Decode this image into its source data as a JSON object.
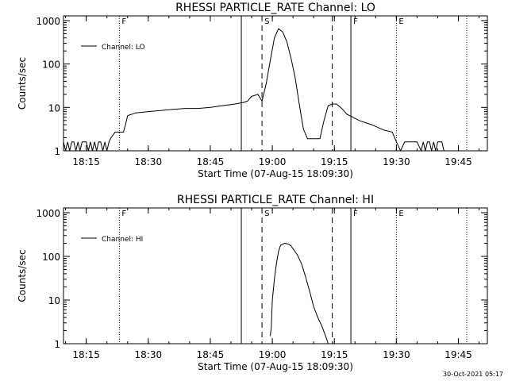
{
  "footer": {
    "timestamp": "30-Oct-2021 05:17"
  },
  "chart_data": [
    {
      "type": "line",
      "title": "RHESSI PARTICLE_RATE Channel: LO",
      "xlabel": "Start Time (07-Aug-15 18:09:30)",
      "ylabel": "Counts/sec",
      "y_scale": "log",
      "ylim": [
        1,
        1000
      ],
      "xlim": [
        "18:09:30",
        "19:52:00"
      ],
      "x_ticks": [
        "18:15",
        "18:30",
        "18:45",
        "19:00",
        "19:15",
        "19:30",
        "19:45"
      ],
      "y_ticks": [
        "1",
        "10",
        "100",
        "1000"
      ],
      "legend": {
        "position": "top-left",
        "entries": [
          "Channel: LO"
        ]
      },
      "series": [
        {
          "name": "Channel: LO",
          "x": [
            "18:09:30",
            "18:10:00",
            "18:10:30",
            "18:11:00",
            "18:11:30",
            "18:12:00",
            "18:12:30",
            "18:13:00",
            "18:13:30",
            "18:14:00",
            "18:14:30",
            "18:15:00",
            "18:15:30",
            "18:16:00",
            "18:16:30",
            "18:17:00",
            "18:17:30",
            "18:18:00",
            "18:18:30",
            "18:19:00",
            "18:19:30",
            "18:20:00",
            "18:20:30",
            "18:21:00",
            "18:22:00",
            "18:23:00",
            "18:24:00",
            "18:24:30",
            "18:25:00",
            "18:27:00",
            "18:30:00",
            "18:33:00",
            "18:36:00",
            "18:39:00",
            "18:42:00",
            "18:45:00",
            "18:48:00",
            "18:51:00",
            "18:53:00",
            "18:54:00",
            "18:55:00",
            "18:56:30",
            "18:57:30",
            "18:58:30",
            "18:59:30",
            "19:00:30",
            "19:01:30",
            "19:02:30",
            "19:03:30",
            "19:04:30",
            "19:05:30",
            "19:06:30",
            "19:07:30",
            "19:08:30",
            "19:09:30",
            "19:10:30",
            "19:11:30",
            "19:12:30",
            "19:13:30",
            "19:14:30",
            "19:15:30",
            "19:16:00",
            "19:16:30",
            "19:17:00",
            "19:18:00",
            "19:21:00",
            "19:24:00",
            "19:27:00",
            "19:29:00",
            "19:30:00",
            "19:31:00",
            "19:32:00",
            "19:33:00",
            "19:34:00",
            "19:35:00",
            "19:36:00",
            "19:36:30",
            "19:37:00",
            "19:37:30",
            "19:38:00",
            "19:38:30",
            "19:39:00",
            "19:39:30",
            "19:40:00",
            "19:40:30",
            "19:41:00",
            "19:41:30",
            "19:42:00"
          ],
          "values": [
            1.6,
            1,
            1.6,
            1,
            1.6,
            1.6,
            1,
            1.6,
            1,
            1.6,
            1.6,
            1.6,
            1,
            1.6,
            1,
            1.6,
            1,
            1.6,
            1.6,
            1,
            1.6,
            1,
            1.6,
            2,
            2.7,
            2.7,
            2.7,
            4,
            6.5,
            7.5,
            8,
            8.5,
            9,
            9.5,
            9.5,
            10,
            11,
            12,
            13,
            14,
            18,
            20,
            14,
            35,
            120,
            400,
            650,
            550,
            330,
            140,
            50,
            12,
            3.2,
            1.9,
            1.9,
            1.9,
            1.9,
            5,
            11,
            12,
            12,
            11,
            10,
            9,
            7,
            5,
            4,
            3,
            2.7,
            1.6,
            1,
            1.6,
            1.6,
            1.6,
            1.6,
            1,
            1.6,
            1,
            1.6,
            1.6,
            1,
            1.6,
            1,
            1.6,
            1.6,
            1.6,
            1,
            1
          ]
        }
      ],
      "annotations": [
        {
          "label": "F",
          "x": "18:23:00",
          "style": "dotted"
        },
        {
          "label": "",
          "x": "18:52:30",
          "style": "solid"
        },
        {
          "label": "S",
          "x": "18:57:30",
          "style": "dashed"
        },
        {
          "label": "",
          "x": "19:14:30",
          "style": "dashed"
        },
        {
          "label": "F",
          "x": "19:19:00",
          "style": "solid"
        },
        {
          "label": "E",
          "x": "19:30:00",
          "style": "dotted"
        },
        {
          "label": "",
          "x": "19:47:00",
          "style": "dotted"
        }
      ]
    },
    {
      "type": "line",
      "title": "RHESSI PARTICLE_RATE Channel: HI",
      "xlabel": "Start Time (07-Aug-15 18:09:30)",
      "ylabel": "Counts/sec",
      "y_scale": "log",
      "ylim": [
        1,
        1000
      ],
      "xlim": [
        "18:09:30",
        "19:52:00"
      ],
      "x_ticks": [
        "18:15",
        "18:30",
        "18:45",
        "19:00",
        "19:15",
        "19:30",
        "19:45"
      ],
      "y_ticks": [
        "1",
        "10",
        "100",
        "1000"
      ],
      "legend": {
        "position": "top-left",
        "entries": [
          "Channel: HI"
        ]
      },
      "series": [
        {
          "name": "Channel: HI",
          "x": [
            "18:59:30",
            "18:59:45",
            "19:00:00",
            "19:00:30",
            "19:01:00",
            "19:01:30",
            "19:02:00",
            "19:03:00",
            "19:04:00",
            "19:04:30",
            "19:05:00",
            "19:06:00",
            "19:07:00",
            "19:08:00",
            "19:09:00",
            "19:10:00",
            "19:11:00",
            "19:12:00",
            "19:13:00",
            "19:13:30"
          ],
          "values": [
            1.5,
            2.4,
            10,
            30,
            70,
            130,
            180,
            200,
            190,
            175,
            150,
            110,
            70,
            35,
            16,
            7,
            4,
            2.5,
            1.4,
            1
          ]
        }
      ],
      "annotations": [
        {
          "label": "F",
          "x": "18:23:00",
          "style": "dotted"
        },
        {
          "label": "",
          "x": "18:52:30",
          "style": "solid"
        },
        {
          "label": "S",
          "x": "18:57:30",
          "style": "dashed"
        },
        {
          "label": "",
          "x": "19:14:30",
          "style": "dashed"
        },
        {
          "label": "F",
          "x": "19:19:00",
          "style": "solid"
        },
        {
          "label": "E",
          "x": "19:30:00",
          "style": "dotted"
        },
        {
          "label": "",
          "x": "19:47:00",
          "style": "dotted"
        }
      ]
    }
  ]
}
